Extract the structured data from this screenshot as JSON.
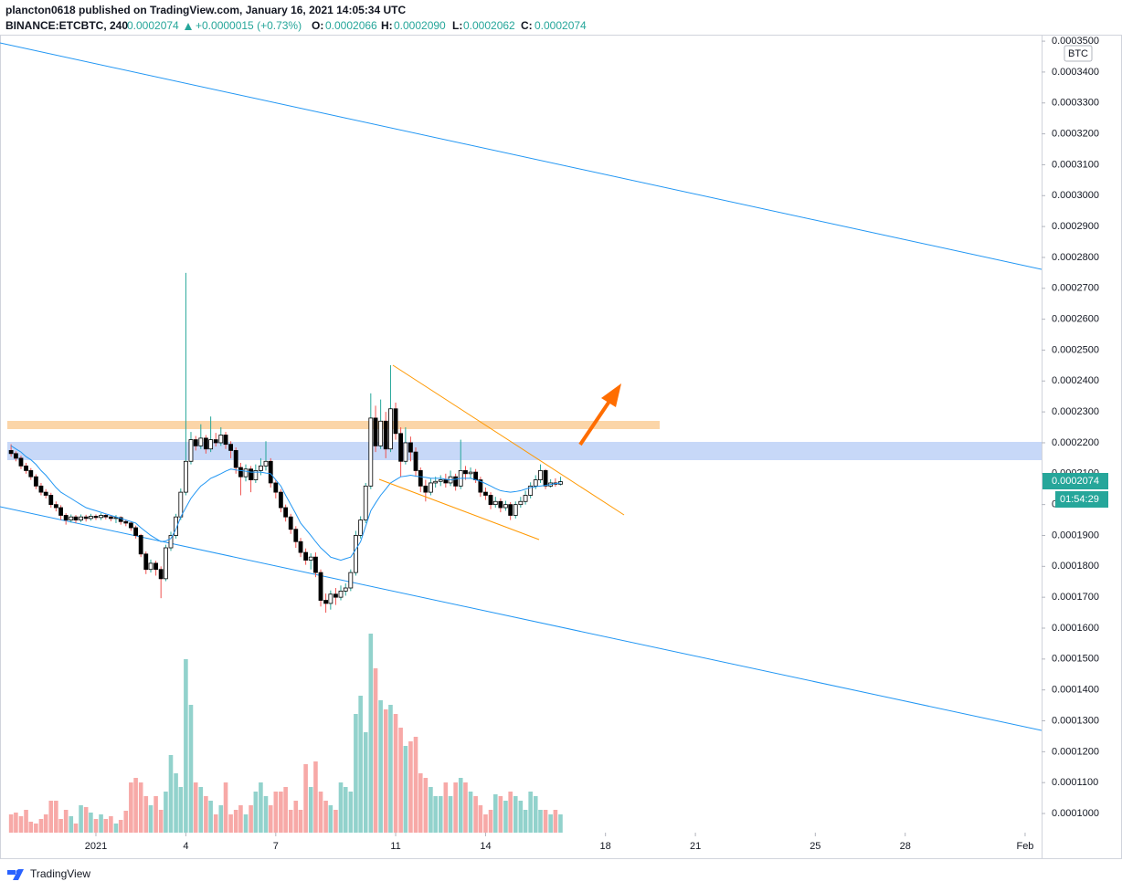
{
  "header": {
    "author_line": "plancton0618 published on TradingView.com, January 16, 2021 14:05:34 UTC",
    "symbol": "BINANCE:ETCBTC, 240",
    "last": "0.0002074",
    "change": "+0.0000015 (+0.73%)",
    "ohlc": [
      {
        "label": "O:",
        "value": "0.0002066"
      },
      {
        "label": "H:",
        "value": "0.0002090"
      },
      {
        "label": "L:",
        "value": "0.0002062"
      },
      {
        "label": "C:",
        "value": "0.0002074"
      }
    ]
  },
  "footer": {
    "brand": "TradingView"
  },
  "chart_data": {
    "type": "candlestick",
    "unit": "BTC",
    "countdown": "01:54:29",
    "up_color": "#26a69a",
    "down_color": "#ef5350",
    "body_up": "#ffffff",
    "body_down": "#000000",
    "border": "#000000",
    "volume_up_color": "rgba(38,166,154,0.5)",
    "volume_down_color": "rgba(239,83,80,0.5)",
    "xlim": [
      -2.2,
      32.55
    ],
    "ylim": [
      9.38e-05,
      0.0003515
    ],
    "xticks": [
      {
        "value": 1,
        "label": "2021"
      },
      4,
      7,
      11,
      14,
      18,
      21,
      25,
      28,
      {
        "value": 32,
        "label": "Feb"
      }
    ],
    "yticks": [
      {
        "value": 0.0001,
        "label": "0.0001000"
      },
      {
        "value": 0.00011,
        "label": "0.0001100"
      },
      {
        "value": 0.00012,
        "label": "0.0001200"
      },
      {
        "value": 0.00013,
        "label": "0.0001300"
      },
      {
        "value": 0.00014,
        "label": "0.0001400"
      },
      {
        "value": 0.00015,
        "label": "0.0001500"
      },
      {
        "value": 0.00016,
        "label": "0.0001600"
      },
      {
        "value": 0.00017,
        "label": "0.0001700"
      },
      {
        "value": 0.00018,
        "label": "0.0001800"
      },
      {
        "value": 0.00019,
        "label": "0.0001900"
      },
      {
        "value": 0.0002,
        "label": "0.0002000"
      },
      {
        "value": 0.00021,
        "label": "0.0002100"
      },
      {
        "value": 0.00022,
        "label": "0.0002200"
      },
      {
        "value": 0.00023,
        "label": "0.0002300"
      },
      {
        "value": 0.00024,
        "label": "0.0002400"
      },
      {
        "value": 0.00025,
        "label": "0.0002500"
      },
      {
        "value": 0.00026,
        "label": "0.0002600"
      },
      {
        "value": 0.00027,
        "label": "0.0002700"
      },
      {
        "value": 0.00028,
        "label": "0.0002800"
      },
      {
        "value": 0.00029,
        "label": "0.0002900"
      },
      {
        "value": 0.0003,
        "label": "0.0003000"
      },
      {
        "value": 0.00031,
        "label": "0.0003100"
      },
      {
        "value": 0.00032,
        "label": "0.0003200"
      },
      {
        "value": 0.00033,
        "label": "0.0003300"
      },
      {
        "value": 0.00034,
        "label": "0.0003400"
      },
      {
        "value": 0.00035,
        "label": "0.0003500"
      }
    ],
    "x": [
      -1.83,
      -1.67,
      -1.5,
      -1.33,
      -1.17,
      -1,
      -0.83,
      -0.67,
      -0.5,
      -0.33,
      -0.17,
      0,
      0.17,
      0.33,
      0.5,
      0.67,
      0.83,
      1,
      1.17,
      1.33,
      1.5,
      1.67,
      1.83,
      2,
      2.17,
      2.33,
      2.5,
      2.67,
      2.83,
      3,
      3.17,
      3.33,
      3.5,
      3.67,
      3.83,
      4,
      4.17,
      4.33,
      4.5,
      4.67,
      4.83,
      5,
      5.17,
      5.33,
      5.5,
      5.67,
      5.83,
      6,
      6.17,
      6.33,
      6.5,
      6.67,
      6.83,
      7,
      7.17,
      7.33,
      7.5,
      7.67,
      7.83,
      8,
      8.17,
      8.33,
      8.5,
      8.67,
      8.83,
      9,
      9.17,
      9.33,
      9.5,
      9.67,
      9.83,
      10,
      10.17,
      10.33,
      10.5,
      10.67,
      10.83,
      11,
      11.17,
      11.33,
      11.5,
      11.67,
      11.83,
      12,
      12.17,
      12.33,
      12.5,
      12.67,
      12.83,
      13,
      13.17,
      13.33,
      13.5,
      13.67,
      13.83,
      14,
      14.17,
      14.33,
      14.5,
      14.67,
      14.83,
      15,
      15.17,
      15.33,
      15.5,
      15.67,
      15.83,
      16,
      16.17,
      16.33,
      16.5
    ],
    "open": [
      0.0002175,
      0.0002165,
      0.000215,
      0.0002125,
      0.000211,
      0.000209,
      0.000206,
      0.000204,
      0.000203,
      0.0002,
      0.000199,
      0.0001965,
      0.000195,
      0.000196,
      0.000195,
      0.000196,
      0.0001955,
      0.0001962,
      0.0001958,
      0.0001965,
      0.000196,
      0.0001955,
      0.0001958,
      0.0001945,
      0.000194,
      0.0001925,
      0.00019,
      0.000184,
      0.000179,
      0.000181,
      0.000179,
      0.000176,
      0.000186,
      0.00019,
      0.000196,
      0.000204,
      0.000214,
      0.000221,
      0.000219,
      0.0002215,
      0.000218,
      0.000221,
      0.00022,
      0.0002225,
      0.0002195,
      0.0002175,
      0.000212,
      0.000209,
      0.0002115,
      0.000208,
      0.000211,
      0.0002125,
      0.000214,
      0.000207,
      0.000204,
      0.000199,
      0.000196,
      0.000192,
      0.000188,
      0.0001845,
      0.000182,
      0.000183,
      0.000178,
      0.000169,
      0.000168,
      0.000171,
      0.00017,
      0.000172,
      0.000173,
      0.000178,
      0.00019,
      0.000195,
      0.000206,
      0.000228,
      0.000219,
      0.000227,
      0.000218,
      0.000231,
      0.000223,
      0.000214,
      0.00022,
      0.000217,
      0.000211,
      0.000206,
      0.000204,
      0.000207,
      0.0002075,
      0.000208,
      0.000207,
      0.000209,
      0.000206,
      0.000211,
      0.00021,
      0.0002105,
      0.000208,
      0.000204,
      0.000203,
      0.0002,
      0.000201,
      0.000199,
      0.0002,
      0.0001965,
      0.0002,
      0.000201,
      0.000203,
      0.000206,
      0.000208,
      0.000211,
      0.000206,
      0.000207,
      0.0002066
    ],
    "high": [
      0.0002195,
      0.0002172,
      0.0002158,
      0.0002135,
      0.0002118,
      0.0002098,
      0.000207,
      0.000205,
      0.0002038,
      0.000201,
      0.0001998,
      0.0001972,
      0.0001968,
      0.0001966,
      0.0001968,
      0.0001967,
      0.000197,
      0.0001968,
      0.0001972,
      0.000197,
      0.0001966,
      0.0001966,
      0.0001962,
      0.0001952,
      0.0001946,
      0.0001932,
      0.0001905,
      0.0001848,
      0.0001822,
      0.0001818,
      0.00018,
      0.000187,
      0.0001912,
      0.000197,
      0.0002052,
      0.000275,
      0.0002235,
      0.0002222,
      0.000226,
      0.0002225,
      0.0002285,
      0.0002232,
      0.000225,
      0.0002235,
      0.0002205,
      0.0002185,
      0.0002135,
      0.000213,
      0.0002125,
      0.000213,
      0.000215,
      0.0002205,
      0.000215,
      0.000208,
      0.000205,
      0.0002,
      0.000197,
      0.000193,
      0.0001892,
      0.0001858,
      0.0001842,
      0.0001845,
      0.000179,
      0.0001712,
      0.0001722,
      0.000173,
      0.0001738,
      0.0001745,
      0.000179,
      0.0001915,
      0.0001962,
      0.000207,
      0.000236,
      0.000232,
      0.000234,
      0.00023,
      0.0002451,
      0.000233,
      0.000225,
      0.000225,
      0.000222,
      0.0002185,
      0.000212,
      0.000208,
      0.0002085,
      0.000209,
      0.0002095,
      0.00021,
      0.000211,
      0.00021,
      0.000221,
      0.0002125,
      0.000212,
      0.0002115,
      0.000209,
      0.0002055,
      0.000204,
      0.0002025,
      0.000202,
      0.0002012,
      0.0002008,
      0.000201,
      0.0002025,
      0.0002045,
      0.0002072,
      0.0002095,
      0.000213,
      0.0002115,
      0.0002082,
      0.0002085,
      0.000209
    ],
    "low": [
      0.0002155,
      0.000214,
      0.0002115,
      0.00021,
      0.000208,
      0.000205,
      0.000203,
      0.000202,
      0.000199,
      0.0001978,
      0.000195,
      0.0001935,
      0.0001942,
      0.000194,
      0.0001943,
      0.0001945,
      0.0001948,
      0.000195,
      0.000195,
      0.0001952,
      0.0001946,
      0.000194,
      0.0001935,
      0.000193,
      0.0001915,
      0.000189,
      0.000183,
      0.0001775,
      0.000178,
      0.000177,
      0.0001697,
      0.0001752,
      0.000185,
      0.000189,
      0.000195,
      0.000203,
      0.000213,
      0.0002175,
      0.000218,
      0.0002165,
      0.000217,
      0.0002188,
      0.000219,
      0.000218,
      0.000215,
      0.00021,
      0.000203,
      0.0002075,
      0.000204,
      0.000207,
      0.0002095,
      0.000211,
      0.0002055,
      0.000202,
      0.0001975,
      0.0001945,
      0.0001905,
      0.000186,
      0.000183,
      0.0001805,
      0.000179,
      0.0001765,
      0.000167,
      0.000165,
      0.000166,
      0.0001675,
      0.000169,
      0.0001705,
      0.000172,
      0.000177,
      0.000189,
      0.000194,
      0.000205,
      0.000217,
      0.000218,
      0.000215,
      0.000217,
      0.000221,
      0.000209,
      0.000213,
      0.000214,
      0.000209,
      0.000204,
      0.000201,
      0.000203,
      0.0002055,
      0.000206,
      0.0002055,
      0.000206,
      0.0002045,
      0.000205,
      0.000208,
      0.0002085,
      0.000207,
      0.0002025,
      0.0002015,
      0.0001985,
      0.000199,
      0.0001975,
      0.000198,
      0.000195,
      0.0001955,
      0.000199,
      0.0002,
      0.000202,
      0.000205,
      0.000207,
      0.000205,
      0.0002055,
      0.0002058,
      0.0002062
    ],
    "close": [
      0.0002165,
      0.000215,
      0.0002125,
      0.000211,
      0.000209,
      0.000206,
      0.000204,
      0.000203,
      0.0002,
      0.000199,
      0.0001965,
      0.000195,
      0.000196,
      0.000195,
      0.000196,
      0.0001955,
      0.0001962,
      0.0001958,
      0.0001965,
      0.000196,
      0.0001955,
      0.0001958,
      0.0001945,
      0.000194,
      0.0001925,
      0.00019,
      0.000184,
      0.000179,
      0.000181,
      0.000179,
      0.000176,
      0.000186,
      0.00019,
      0.000196,
      0.000204,
      0.000214,
      0.000221,
      0.000219,
      0.0002215,
      0.000218,
      0.000221,
      0.00022,
      0.0002225,
      0.0002195,
      0.0002175,
      0.000212,
      0.000209,
      0.0002115,
      0.000208,
      0.000211,
      0.0002125,
      0.000214,
      0.000207,
      0.000204,
      0.000199,
      0.000196,
      0.000192,
      0.000188,
      0.0001845,
      0.000182,
      0.000183,
      0.000178,
      0.000169,
      0.000168,
      0.000171,
      0.00017,
      0.000172,
      0.000173,
      0.000178,
      0.00019,
      0.000195,
      0.000206,
      0.000228,
      0.000219,
      0.000227,
      0.000218,
      0.000231,
      0.000223,
      0.000214,
      0.00022,
      0.000217,
      0.000211,
      0.000206,
      0.000204,
      0.000207,
      0.0002075,
      0.000208,
      0.000207,
      0.000209,
      0.000206,
      0.000211,
      0.00021,
      0.0002105,
      0.000208,
      0.000204,
      0.000203,
      0.0002,
      0.000201,
      0.000199,
      0.0002,
      0.0001965,
      0.0002,
      0.000201,
      0.000203,
      0.000206,
      0.000208,
      0.000211,
      0.000206,
      0.000207,
      0.0002066,
      0.0002074
    ],
    "volume": [
      20,
      22,
      18,
      25,
      12,
      10,
      15,
      20,
      35,
      35,
      15,
      25,
      18,
      10,
      30,
      28,
      22,
      15,
      20,
      15,
      18,
      10,
      14,
      24,
      55,
      60,
      55,
      40,
      30,
      40,
      25,
      45,
      85,
      65,
      50,
      190,
      140,
      55,
      50,
      40,
      35,
      20,
      30,
      55,
      20,
      25,
      30,
      20,
      30,
      45,
      55,
      40,
      30,
      45,
      45,
      50,
      25,
      35,
      25,
      75,
      50,
      78,
      45,
      35,
      30,
      25,
      55,
      50,
      45,
      130,
      150,
      110,
      218,
      180,
      145,
      135,
      140,
      130,
      115,
      95,
      100,
      105,
      65,
      60,
      50,
      40,
      40,
      55,
      40,
      55,
      60,
      55,
      45,
      40,
      30,
      20,
      25,
      42,
      40,
      35,
      45,
      40,
      35,
      25,
      45,
      40,
      25,
      25,
      20,
      25,
      20
    ],
    "ma": {
      "color": "#2196f3",
      "values": [
        0.000219,
        0.000218,
        0.000217,
        0.0002155,
        0.0002145,
        0.000213,
        0.000211,
        0.0002095,
        0.0002075,
        0.0002055,
        0.000204,
        0.000203,
        0.000202,
        0.000201,
        0.0002,
        0.000199,
        0.0001985,
        0.000198,
        0.0001975,
        0.000197,
        0.0001965,
        0.000196,
        0.0001955,
        0.000195,
        0.0001945,
        0.000194,
        0.0001925,
        0.0001912,
        0.00019,
        0.000189,
        0.000188,
        0.0001882,
        0.000189,
        0.000192,
        0.000196,
        0.000199,
        0.000202,
        0.000204,
        0.000206,
        0.0002072,
        0.0002085,
        0.0002092,
        0.00021,
        0.0002108,
        0.0002115,
        0.0002112,
        0.000211,
        0.0002108,
        0.0002105,
        0.0002105,
        0.0002105,
        0.0002102,
        0.00021,
        0.000208,
        0.000206,
        0.000203,
        0.0002,
        0.000197,
        0.000194,
        0.000192,
        0.00019,
        0.000188,
        0.000186,
        0.0001845,
        0.000183,
        0.0001825,
        0.000182,
        0.0001825,
        0.000183,
        0.0001855,
        0.000188,
        0.000193,
        0.000198,
        0.0002005,
        0.000203,
        0.000205,
        0.000207,
        0.000208,
        0.000209,
        0.0002092,
        0.0002095,
        0.0002092,
        0.000209,
        0.0002088,
        0.0002085,
        0.0002085,
        0.0002085,
        0.0002082,
        0.000208,
        0.0002082,
        0.0002085,
        0.0002085,
        0.0002085,
        0.000208,
        0.0002075,
        0.0002068,
        0.000206,
        0.0002052,
        0.0002045,
        0.0002042,
        0.000204,
        0.0002042,
        0.0002045,
        0.000205,
        0.0002055,
        0.0002058,
        0.000206,
        0.0002062,
        0.0002065,
        0.0002068,
        0.000207
      ]
    }
  }
}
